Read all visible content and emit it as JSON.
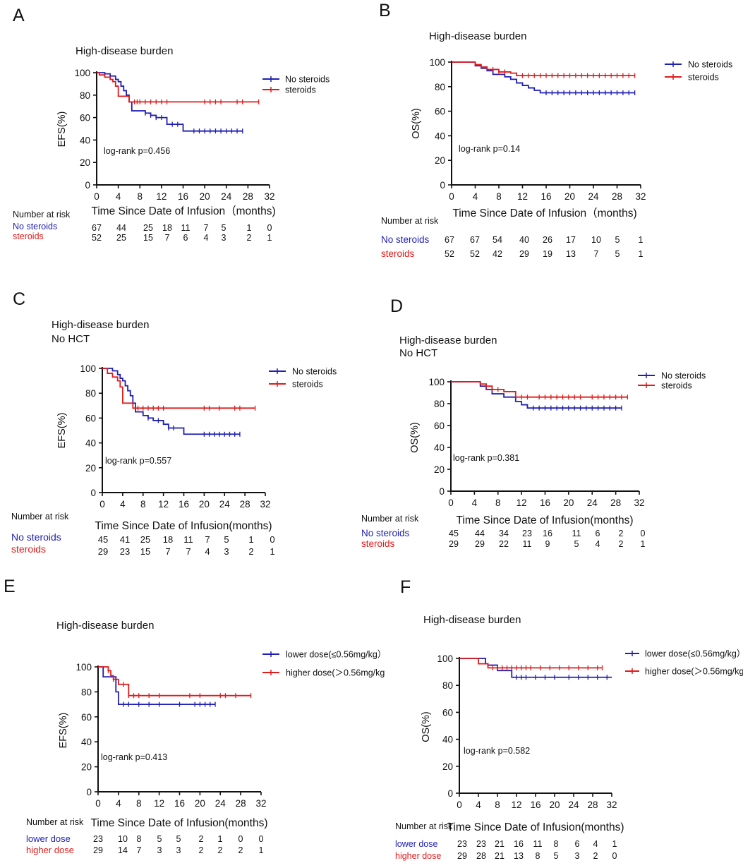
{
  "colors": {
    "blue": "#1f1fb4",
    "red": "#e01b1b",
    "black": "#111111"
  },
  "chart_data": [
    {
      "panel": "A",
      "type": "line",
      "chart_kind": "kaplan-meier",
      "title": "High-disease burden",
      "subtitle": "",
      "xlabel": "Time Since Date of Infusion（months)",
      "ylabel": "EFS(%)",
      "xlim": [
        0,
        32
      ],
      "ylim": [
        0,
        100
      ],
      "xticks": [
        0,
        4,
        8,
        12,
        16,
        20,
        24,
        28,
        32
      ],
      "yticks": [
        0,
        20,
        40,
        60,
        80,
        100
      ],
      "annotation": "log-rank p=0.456",
      "series": [
        {
          "name": "No steroids",
          "color": "#1f1fb4",
          "x": [
            0,
            1.5,
            2.5,
            3.5,
            4,
            4.5,
            5,
            5.5,
            6,
            6.5,
            8,
            9,
            10,
            11,
            12,
            13,
            14,
            16,
            18,
            20,
            22,
            24,
            26,
            27
          ],
          "y": [
            100,
            99,
            97,
            94,
            92,
            88,
            84,
            80,
            74,
            66,
            66,
            64,
            62,
            60,
            60,
            54,
            54,
            48,
            48,
            48,
            48,
            48,
            48,
            48
          ],
          "censor_x": [
            9,
            10,
            11,
            12,
            14,
            15,
            18,
            19,
            20,
            21,
            22,
            23,
            24,
            25,
            26,
            27
          ]
        },
        {
          "name": "steroids",
          "color": "#e01b1b",
          "x": [
            0,
            0.5,
            1.5,
            2.5,
            3,
            3.5,
            4,
            5,
            6,
            10,
            20,
            30
          ],
          "y": [
            100,
            98,
            96,
            94,
            92,
            88,
            79,
            79,
            74,
            74,
            74,
            74
          ],
          "censor_x": [
            7,
            7.5,
            8,
            9,
            10,
            11,
            12,
            13,
            20,
            21,
            22,
            23,
            26,
            27,
            30
          ]
        }
      ],
      "risk_table": {
        "header": "Number at risk",
        "rows": [
          {
            "label": "No steroids",
            "values": [
              "67",
              "44",
              "25",
              "18",
              "11",
              "7",
              "5",
              "1",
              "0"
            ]
          },
          {
            "label": "steroids",
            "values": [
              "52",
              "25",
              "15",
              "7",
              "6",
              "4",
              "3",
              "2",
              "1"
            ]
          }
        ]
      }
    },
    {
      "panel": "B",
      "type": "line",
      "chart_kind": "kaplan-meier",
      "title": "High-disease burden",
      "subtitle": "",
      "xlabel": "Time Since Date of Infusion（months)",
      "ylabel": "OS(%)",
      "xlim": [
        0,
        32
      ],
      "ylim": [
        0,
        100
      ],
      "xticks": [
        0,
        4,
        8,
        12,
        16,
        20,
        24,
        28,
        32
      ],
      "yticks": [
        0,
        20,
        40,
        60,
        80,
        100
      ],
      "annotation": "log-rank p=0.14",
      "series": [
        {
          "name": "No steroids",
          "color": "#1f1fb4",
          "x": [
            0,
            4,
            5,
            6,
            7,
            9,
            10,
            11,
            12,
            13,
            14,
            15,
            31
          ],
          "y": [
            100,
            97,
            95,
            93,
            90,
            88,
            86,
            83,
            81,
            79,
            77,
            75,
            75
          ],
          "censor_x": [
            16,
            17,
            18,
            19,
            20,
            21,
            22,
            23,
            24,
            25,
            26,
            27,
            28,
            29,
            30,
            31
          ]
        },
        {
          "name": "steroids",
          "color": "#e01b1b",
          "x": [
            0,
            4,
            5,
            6,
            8,
            10,
            11,
            31
          ],
          "y": [
            100,
            98,
            96,
            94,
            92,
            91,
            89,
            89
          ],
          "censor_x": [
            7,
            8,
            9,
            12,
            13,
            14,
            15,
            16,
            17,
            18,
            19,
            20,
            21,
            22,
            23,
            24,
            25,
            26,
            27,
            28,
            29,
            30,
            31
          ]
        }
      ],
      "risk_table": {
        "header": "Number at risk",
        "rows": [
          {
            "label": "No steroids",
            "values": [
              "67",
              "67",
              "54",
              "40",
              "26",
              "17",
              "10",
              "5",
              "1"
            ]
          },
          {
            "label": "steroids",
            "values": [
              "52",
              "52",
              "42",
              "29",
              "19",
              "13",
              "7",
              "5",
              "1"
            ]
          }
        ]
      }
    },
    {
      "panel": "C",
      "type": "line",
      "chart_kind": "kaplan-meier",
      "title": "High-disease burden",
      "subtitle": "No HCT",
      "xlabel": "Time Since Date of Infusion(months)",
      "ylabel": "EFS(%)",
      "xlim": [
        0,
        32
      ],
      "ylim": [
        0,
        100
      ],
      "xticks": [
        0,
        4,
        8,
        12,
        16,
        20,
        24,
        28,
        32
      ],
      "yticks": [
        0,
        20,
        40,
        60,
        80,
        100
      ],
      "annotation": "log-rank p=0.557",
      "series": [
        {
          "name": "No steroids",
          "color": "#1f1fb4",
          "x": [
            0,
            2,
            3,
            3.5,
            4,
            4.5,
            5,
            5.5,
            6,
            6.5,
            8,
            9,
            10,
            12,
            13,
            14,
            16,
            18,
            27
          ],
          "y": [
            100,
            98,
            95,
            92,
            90,
            86,
            82,
            78,
            72,
            65,
            62,
            60,
            58,
            55,
            52,
            52,
            47,
            47,
            47
          ],
          "censor_x": [
            9,
            11,
            13,
            14,
            20,
            21,
            22,
            23,
            24,
            25,
            26,
            27
          ]
        },
        {
          "name": "steroids",
          "color": "#e01b1b",
          "x": [
            0,
            1,
            2,
            3,
            3.5,
            4,
            5,
            6,
            30
          ],
          "y": [
            100,
            96,
            93,
            90,
            85,
            72,
            72,
            68,
            68
          ],
          "censor_x": [
            7,
            8,
            9,
            10,
            11,
            12,
            20,
            21,
            23,
            26,
            27,
            30
          ]
        }
      ],
      "risk_table": {
        "header": "Number at risk",
        "rows": [
          {
            "label": "No steroids",
            "values": [
              "45",
              "41",
              "25",
              "18",
              "11",
              "7",
              "5",
              "1",
              "0"
            ]
          },
          {
            "label": "steroids",
            "values": [
              "29",
              "23",
              "15",
              "7",
              "7",
              "4",
              "3",
              "2",
              "1"
            ]
          }
        ]
      }
    },
    {
      "panel": "D",
      "type": "line",
      "chart_kind": "kaplan-meier",
      "title": "High-disease burden",
      "subtitle": "No HCT",
      "xlabel": "Time Since Date of Infusion(months)",
      "ylabel": "OS(%)",
      "xlim": [
        0,
        32
      ],
      "ylim": [
        0,
        100
      ],
      "xticks": [
        0,
        4,
        8,
        12,
        16,
        20,
        24,
        28,
        32
      ],
      "yticks": [
        0,
        20,
        40,
        60,
        80,
        100
      ],
      "annotation": "log-rank p=0.381",
      "series": [
        {
          "name": "No steroids",
          "color": "#1f1fb4",
          "x": [
            0,
            5,
            6,
            7,
            9,
            11,
            12,
            13,
            29
          ],
          "y": [
            100,
            96,
            93,
            89,
            86,
            82,
            79,
            76,
            76
          ],
          "censor_x": [
            14,
            15,
            16,
            17,
            18,
            19,
            20,
            21,
            22,
            23,
            24,
            25,
            26,
            27,
            28,
            29
          ]
        },
        {
          "name": "steroids",
          "color": "#e01b1b",
          "x": [
            0,
            5,
            6,
            7,
            9,
            11,
            30
          ],
          "y": [
            100,
            98,
            96,
            93,
            91,
            86,
            86
          ],
          "censor_x": [
            6,
            7,
            8,
            12,
            13,
            15,
            16,
            17,
            18,
            19,
            20,
            21,
            22,
            24,
            25,
            26,
            27,
            28,
            29,
            30
          ]
        }
      ],
      "risk_table": {
        "header": "Number at risk",
        "rows": [
          {
            "label": "No steroids",
            "values": [
              "45",
              "44",
              "34",
              "23",
              "16",
              "11",
              "6",
              "2",
              "0"
            ]
          },
          {
            "label": "steroids",
            "values": [
              "29",
              "29",
              "22",
              "11",
              "9",
              "5",
              "4",
              "2",
              "1"
            ]
          }
        ]
      }
    },
    {
      "panel": "E",
      "type": "line",
      "chart_kind": "kaplan-meier",
      "title": "High-disease burden",
      "subtitle": "",
      "xlabel": "Time Since Date of Infusion(months)",
      "ylabel": "EFS(%)",
      "xlim": [
        0,
        32
      ],
      "ylim": [
        0,
        100
      ],
      "xticks": [
        0,
        4,
        8,
        12,
        16,
        20,
        24,
        28,
        32
      ],
      "yticks": [
        0,
        20,
        40,
        60,
        80,
        100
      ],
      "annotation": "log-rank p=0.413",
      "series": [
        {
          "name": "lower dose(≤0.56mg/kg）",
          "color": "#1f1fb4",
          "x": [
            0,
            1,
            2,
            3,
            3.5,
            4,
            23
          ],
          "y": [
            100,
            92,
            92,
            92,
            80,
            70,
            70
          ],
          "censor_x": [
            5,
            6,
            8,
            10,
            12,
            16,
            19,
            20,
            21,
            22,
            23
          ]
        },
        {
          "name": "higher dose(＞0.56mg/kg",
          "color": "#e01b1b",
          "x": [
            0,
            2,
            2.5,
            3,
            4,
            5,
            6,
            30
          ],
          "y": [
            100,
            97,
            93,
            90,
            86,
            86,
            77,
            77
          ],
          "censor_x": [
            2,
            3,
            5,
            6,
            7,
            8,
            10,
            12,
            18,
            20,
            24,
            25,
            27,
            30
          ]
        }
      ],
      "risk_table": {
        "header": "Number at risk",
        "rows": [
          {
            "label": "lower dose",
            "values": [
              "23",
              "10",
              "8",
              "5",
              "5",
              "2",
              "1",
              "0",
              "0"
            ]
          },
          {
            "label": "higher dose",
            "values": [
              "29",
              "14",
              "7",
              "3",
              "3",
              "2",
              "2",
              "2",
              "1"
            ]
          }
        ]
      }
    },
    {
      "panel": "F",
      "type": "line",
      "chart_kind": "kaplan-meier",
      "title": "High-disease burden",
      "subtitle": "",
      "xlabel": "Time Since Date of Infusion(months)",
      "ylabel": "OS(%)",
      "xlim": [
        0,
        32
      ],
      "ylim": [
        0,
        100
      ],
      "xticks": [
        0,
        4,
        8,
        12,
        16,
        20,
        24,
        28,
        32
      ],
      "yticks": [
        0,
        20,
        40,
        60,
        80,
        100
      ],
      "annotation": "log-rank p=0.582",
      "series": [
        {
          "name": "lower dose(≤0.56mg/kg）",
          "color": "#1f1fb4",
          "x": [
            0,
            5.5,
            6,
            8,
            11,
            32
          ],
          "y": [
            100,
            96,
            95,
            91,
            86,
            86
          ],
          "censor_x": [
            12,
            13,
            14,
            16,
            18,
            20,
            23,
            25,
            27,
            29,
            31
          ]
        },
        {
          "name": "higher dose(＞0.56mg/kg）",
          "color": "#e01b1b",
          "x": [
            0,
            4,
            6,
            8,
            30
          ],
          "y": [
            100,
            96,
            93,
            93,
            93
          ],
          "censor_x": [
            7,
            8,
            9,
            10,
            11,
            12,
            13,
            14,
            15,
            17,
            19,
            21,
            23,
            25,
            27,
            29,
            30
          ]
        }
      ],
      "risk_table": {
        "header": "Number at risk",
        "rows": [
          {
            "label": "lower  dose",
            "values": [
              "23",
              "23",
              "21",
              "16",
              "11",
              "8",
              "6",
              "4",
              "1"
            ]
          },
          {
            "label": "higher dose",
            "values": [
              "29",
              "28",
              "21",
              "13",
              "8",
              "5",
              "3",
              "2",
              "0"
            ]
          }
        ]
      }
    }
  ]
}
